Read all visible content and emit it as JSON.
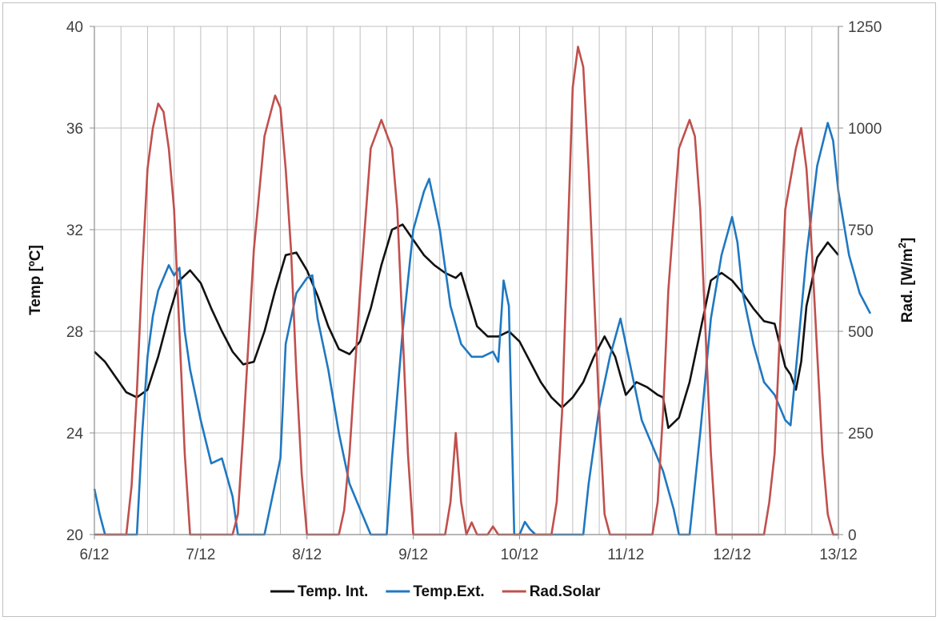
{
  "chart_data": {
    "type": "line",
    "x": {
      "ticks": [
        "6/12",
        "7/12",
        "8/12",
        "9/12",
        "10/12",
        "11/12",
        "12/12",
        "13/12"
      ],
      "range": [
        6,
        13
      ]
    },
    "y_left": {
      "label": "Temp [ºC]",
      "range": [
        20,
        40
      ],
      "ticks": [
        "20",
        "24",
        "28",
        "32",
        "36",
        "40"
      ]
    },
    "y_right": {
      "label_main": "Rad. [W/m",
      "label_sup": "2",
      "label_end": "]",
      "range": [
        0,
        1250
      ],
      "ticks": [
        "0",
        "250",
        "500",
        "750",
        "1000",
        "1250"
      ]
    },
    "grid": true,
    "legend": {
      "placement": "bottom"
    },
    "series": [
      {
        "name": "Temp. Int.",
        "axis": "left",
        "color": "#111111",
        "points": [
          [
            6.0,
            27.2
          ],
          [
            6.1,
            26.8
          ],
          [
            6.2,
            26.2
          ],
          [
            6.3,
            25.6
          ],
          [
            6.4,
            25.4
          ],
          [
            6.5,
            25.7
          ],
          [
            6.6,
            27.0
          ],
          [
            6.7,
            28.6
          ],
          [
            6.8,
            30.0
          ],
          [
            6.9,
            30.4
          ],
          [
            7.0,
            29.9
          ],
          [
            7.1,
            28.9
          ],
          [
            7.2,
            28.0
          ],
          [
            7.3,
            27.2
          ],
          [
            7.4,
            26.7
          ],
          [
            7.5,
            26.8
          ],
          [
            7.6,
            28.0
          ],
          [
            7.7,
            29.6
          ],
          [
            7.8,
            31.0
          ],
          [
            7.9,
            31.1
          ],
          [
            8.0,
            30.4
          ],
          [
            8.1,
            29.4
          ],
          [
            8.2,
            28.2
          ],
          [
            8.3,
            27.3
          ],
          [
            8.4,
            27.1
          ],
          [
            8.5,
            27.6
          ],
          [
            8.6,
            28.9
          ],
          [
            8.7,
            30.6
          ],
          [
            8.8,
            32.0
          ],
          [
            8.9,
            32.2
          ],
          [
            9.0,
            31.6
          ],
          [
            9.1,
            31.0
          ],
          [
            9.2,
            30.6
          ],
          [
            9.3,
            30.3
          ],
          [
            9.4,
            30.1
          ],
          [
            9.45,
            30.3
          ],
          [
            9.5,
            29.6
          ],
          [
            9.6,
            28.2
          ],
          [
            9.7,
            27.8
          ],
          [
            9.8,
            27.8
          ],
          [
            9.9,
            28.0
          ],
          [
            10.0,
            27.6
          ],
          [
            10.1,
            26.8
          ],
          [
            10.2,
            26.0
          ],
          [
            10.3,
            25.4
          ],
          [
            10.4,
            25.0
          ],
          [
            10.5,
            25.4
          ],
          [
            10.6,
            26.0
          ],
          [
            10.7,
            27.0
          ],
          [
            10.8,
            27.8
          ],
          [
            10.9,
            27.0
          ],
          [
            11.0,
            25.5
          ],
          [
            11.1,
            26.0
          ],
          [
            11.2,
            25.8
          ],
          [
            11.3,
            25.5
          ],
          [
            11.35,
            25.4
          ],
          [
            11.4,
            24.2
          ],
          [
            11.5,
            24.6
          ],
          [
            11.6,
            26.0
          ],
          [
            11.7,
            28.0
          ],
          [
            11.8,
            30.0
          ],
          [
            11.9,
            30.3
          ],
          [
            12.0,
            30.0
          ],
          [
            12.1,
            29.5
          ],
          [
            12.2,
            28.9
          ],
          [
            12.3,
            28.4
          ],
          [
            12.4,
            28.3
          ],
          [
            12.5,
            26.6
          ],
          [
            12.55,
            26.3
          ],
          [
            12.6,
            25.7
          ],
          [
            12.65,
            26.8
          ],
          [
            12.7,
            29.0
          ],
          [
            12.8,
            30.9
          ],
          [
            12.9,
            31.5
          ],
          [
            13.0,
            31.0
          ]
        ]
      },
      {
        "name": "Temp.Ext.",
        "axis": "left",
        "color": "#1f78c1",
        "points": [
          [
            6.0,
            21.8
          ],
          [
            6.05,
            20.8
          ],
          [
            6.1,
            20.0
          ],
          [
            6.15,
            20.0
          ],
          [
            6.3,
            20.0
          ],
          [
            6.4,
            20.0
          ],
          [
            6.45,
            24.0
          ],
          [
            6.5,
            27.0
          ],
          [
            6.55,
            28.6
          ],
          [
            6.6,
            29.6
          ],
          [
            6.7,
            30.6
          ],
          [
            6.75,
            30.2
          ],
          [
            6.8,
            30.5
          ],
          [
            6.85,
            28.0
          ],
          [
            6.9,
            26.5
          ],
          [
            7.0,
            24.5
          ],
          [
            7.1,
            22.8
          ],
          [
            7.2,
            23.0
          ],
          [
            7.3,
            21.5
          ],
          [
            7.35,
            20.0
          ],
          [
            7.6,
            20.0
          ],
          [
            7.75,
            23.0
          ],
          [
            7.8,
            27.5
          ],
          [
            7.9,
            29.5
          ],
          [
            8.0,
            30.1
          ],
          [
            8.05,
            30.2
          ],
          [
            8.1,
            28.5
          ],
          [
            8.2,
            26.5
          ],
          [
            8.3,
            24.0
          ],
          [
            8.4,
            22.0
          ],
          [
            8.5,
            21.0
          ],
          [
            8.6,
            20.0
          ],
          [
            8.75,
            20.0
          ],
          [
            8.8,
            23.0
          ],
          [
            8.9,
            28.0
          ],
          [
            9.0,
            32.0
          ],
          [
            9.1,
            33.5
          ],
          [
            9.15,
            34.0
          ],
          [
            9.25,
            32.0
          ],
          [
            9.35,
            29.0
          ],
          [
            9.45,
            27.5
          ],
          [
            9.55,
            27.0
          ],
          [
            9.65,
            27.0
          ],
          [
            9.75,
            27.2
          ],
          [
            9.8,
            26.8
          ],
          [
            9.85,
            30.0
          ],
          [
            9.9,
            29.0
          ],
          [
            9.95,
            20.0
          ],
          [
            10.0,
            20.0
          ],
          [
            10.05,
            20.5
          ],
          [
            10.1,
            20.2
          ],
          [
            10.15,
            20.0
          ],
          [
            10.3,
            20.0
          ],
          [
            10.6,
            20.0
          ],
          [
            10.65,
            22.0
          ],
          [
            10.75,
            25.0
          ],
          [
            10.85,
            27.0
          ],
          [
            10.95,
            28.5
          ],
          [
            11.05,
            26.5
          ],
          [
            11.15,
            24.5
          ],
          [
            11.25,
            23.5
          ],
          [
            11.35,
            22.5
          ],
          [
            11.45,
            21.0
          ],
          [
            11.5,
            20.0
          ],
          [
            11.6,
            20.0
          ],
          [
            11.7,
            24.0
          ],
          [
            11.8,
            28.5
          ],
          [
            11.9,
            31.0
          ],
          [
            12.0,
            32.5
          ],
          [
            12.05,
            31.5
          ],
          [
            12.1,
            29.5
          ],
          [
            12.2,
            27.5
          ],
          [
            12.3,
            26.0
          ],
          [
            12.4,
            25.5
          ],
          [
            12.5,
            24.5
          ],
          [
            12.55,
            24.3
          ],
          [
            12.6,
            26.5
          ],
          [
            12.7,
            31.0
          ],
          [
            12.8,
            34.5
          ],
          [
            12.9,
            36.2
          ],
          [
            12.95,
            35.5
          ],
          [
            13.0,
            33.5
          ],
          [
            13.1,
            31.0
          ],
          [
            13.2,
            29.5
          ],
          [
            13.3,
            28.7
          ]
        ]
      },
      {
        "name": "Rad.Solar",
        "axis": "right",
        "color": "#c0504d",
        "points": [
          [
            6.0,
            0
          ],
          [
            6.3,
            0
          ],
          [
            6.35,
            120
          ],
          [
            6.4,
            350
          ],
          [
            6.45,
            650
          ],
          [
            6.5,
            900
          ],
          [
            6.55,
            1000
          ],
          [
            6.6,
            1060
          ],
          [
            6.65,
            1040
          ],
          [
            6.7,
            950
          ],
          [
            6.75,
            800
          ],
          [
            6.8,
            500
          ],
          [
            6.85,
            200
          ],
          [
            6.9,
            0
          ],
          [
            7.3,
            0
          ],
          [
            7.35,
            50
          ],
          [
            7.4,
            250
          ],
          [
            7.5,
            700
          ],
          [
            7.6,
            980
          ],
          [
            7.7,
            1080
          ],
          [
            7.75,
            1050
          ],
          [
            7.8,
            900
          ],
          [
            7.85,
            700
          ],
          [
            7.9,
            400
          ],
          [
            7.95,
            150
          ],
          [
            8.0,
            0
          ],
          [
            8.3,
            0
          ],
          [
            8.35,
            60
          ],
          [
            8.4,
            200
          ],
          [
            8.5,
            600
          ],
          [
            8.6,
            950
          ],
          [
            8.7,
            1020
          ],
          [
            8.8,
            950
          ],
          [
            8.85,
            800
          ],
          [
            8.9,
            500
          ],
          [
            8.95,
            200
          ],
          [
            9.0,
            0
          ],
          [
            9.3,
            0
          ],
          [
            9.35,
            80
          ],
          [
            9.4,
            250
          ],
          [
            9.45,
            80
          ],
          [
            9.5,
            0
          ],
          [
            9.55,
            30
          ],
          [
            9.6,
            0
          ],
          [
            9.7,
            0
          ],
          [
            9.75,
            20
          ],
          [
            9.8,
            0
          ],
          [
            10.3,
            0
          ],
          [
            10.35,
            80
          ],
          [
            10.4,
            300
          ],
          [
            10.45,
            700
          ],
          [
            10.5,
            1100
          ],
          [
            10.55,
            1200
          ],
          [
            10.6,
            1150
          ],
          [
            10.65,
            900
          ],
          [
            10.7,
            600
          ],
          [
            10.75,
            300
          ],
          [
            10.8,
            50
          ],
          [
            10.85,
            0
          ],
          [
            11.25,
            0
          ],
          [
            11.3,
            80
          ],
          [
            11.35,
            300
          ],
          [
            11.4,
            600
          ],
          [
            11.5,
            950
          ],
          [
            11.6,
            1020
          ],
          [
            11.65,
            980
          ],
          [
            11.7,
            800
          ],
          [
            11.75,
            500
          ],
          [
            11.8,
            200
          ],
          [
            11.85,
            0
          ],
          [
            12.3,
            0
          ],
          [
            12.35,
            80
          ],
          [
            12.4,
            200
          ],
          [
            12.45,
            500
          ],
          [
            12.5,
            800
          ],
          [
            12.6,
            950
          ],
          [
            12.65,
            1000
          ],
          [
            12.7,
            900
          ],
          [
            12.75,
            700
          ],
          [
            12.8,
            450
          ],
          [
            12.85,
            200
          ],
          [
            12.9,
            50
          ],
          [
            12.95,
            0
          ],
          [
            13.0,
            0
          ]
        ]
      }
    ]
  }
}
